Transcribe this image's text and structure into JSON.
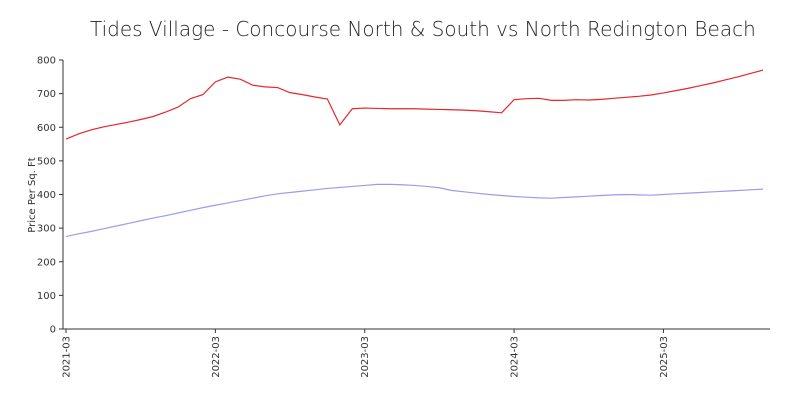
{
  "chart_data": {
    "type": "line",
    "title": "Tides Village - Concourse North & South vs North Redington Beach",
    "y_label": "Price Per Sq. Ft",
    "x": [
      "2021-03",
      "2021-04",
      "2021-05",
      "2021-06",
      "2021-07",
      "2021-08",
      "2021-09",
      "2021-10",
      "2021-11",
      "2021-12",
      "2022-01",
      "2022-02",
      "2022-03",
      "2022-04",
      "2022-05",
      "2022-06",
      "2022-07",
      "2022-08",
      "2022-09",
      "2022-10",
      "2022-11",
      "2022-12",
      "2023-01",
      "2023-02",
      "2023-03",
      "2023-04",
      "2023-05",
      "2023-06",
      "2023-07",
      "2023-08",
      "2023-09",
      "2023-10",
      "2023-11",
      "2023-12",
      "2024-01",
      "2024-02",
      "2024-03",
      "2024-04",
      "2024-05",
      "2024-06",
      "2024-07",
      "2024-08",
      "2024-09",
      "2024-10",
      "2024-11",
      "2024-12",
      "2025-01",
      "2025-02",
      "2025-03",
      "2025-04",
      "2025-05",
      "2025-06",
      "2025-07",
      "2025-08",
      "2025-09",
      "2025-10",
      "2025-11"
    ],
    "series": [
      {
        "color": "#e8262b",
        "values": [
          565,
          580,
          592,
          601,
          608,
          615,
          623,
          632,
          645,
          660,
          685,
          697,
          735,
          749,
          743,
          725,
          720,
          718,
          703,
          697,
          690,
          684,
          607,
          655,
          657,
          656,
          655,
          655,
          655,
          654,
          653,
          652,
          651,
          649,
          646,
          643,
          682,
          685,
          686,
          680,
          680,
          682,
          681,
          683,
          686,
          689,
          692,
          696,
          702,
          709,
          716,
          724,
          732,
          741,
          750,
          760,
          770
        ]
      },
      {
        "color": "#9b9bef",
        "values": [
          275,
          283,
          290,
          298,
          306,
          314,
          322,
          330,
          337,
          345,
          353,
          361,
          368,
          375,
          382,
          389,
          396,
          402,
          406,
          410,
          414,
          418,
          421,
          424,
          427,
          430,
          430,
          429,
          427,
          424,
          420,
          412,
          408,
          404,
          400,
          397,
          394,
          392,
          390,
          389,
          391,
          393,
          395,
          397,
          399,
          400,
          399,
          398,
          400,
          402,
          404,
          406,
          408,
          410,
          412,
          414,
          416
        ]
      }
    ],
    "xticks": [
      "2021-03",
      "2022-03",
      "2023-03",
      "2024-03",
      "2025-03"
    ],
    "ylim": [
      0,
      800
    ],
    "yticks": [
      0,
      100,
      200,
      300,
      400,
      500,
      600,
      700,
      800
    ]
  }
}
